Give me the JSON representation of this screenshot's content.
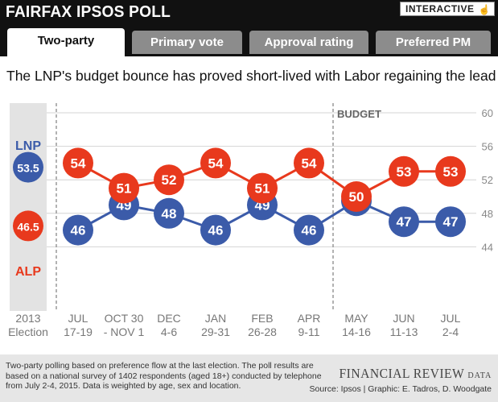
{
  "header": {
    "brand": "FAIRFAX IPSOS POLL",
    "interactive_label": "INTERACTIVE",
    "tabs": [
      {
        "label": "Two-party",
        "active": true
      },
      {
        "label": "Primary vote",
        "active": false
      },
      {
        "label": "Approval rating",
        "active": false
      },
      {
        "label": "Preferred PM",
        "active": false
      }
    ]
  },
  "subtitle": "The LNP's budget bounce has proved short-lived with Labor regaining the lead",
  "chart_data": {
    "type": "line",
    "categories": [
      [
        "2013",
        "Election"
      ],
      [
        "JUL",
        "17-19"
      ],
      [
        "OCT 30",
        "- NOV 1"
      ],
      [
        "DEC",
        "4-6"
      ],
      [
        "JAN",
        "29-31"
      ],
      [
        "FEB",
        "26-28"
      ],
      [
        "APR",
        "9-11"
      ],
      [
        "MAY",
        "14-16"
      ],
      [
        "JUN",
        "11-13"
      ],
      [
        "JUL",
        "2-4"
      ]
    ],
    "series": [
      {
        "name": "LNP",
        "color": "#3b5ba9",
        "values": [
          53.5,
          46,
          49,
          48,
          46,
          49,
          46,
          49.5,
          47,
          47
        ],
        "labels": [
          "53.5",
          "46",
          "49",
          "48",
          "46",
          "49",
          "46",
          "",
          "47",
          "47"
        ]
      },
      {
        "name": "ALP",
        "color": "#e8391d",
        "values": [
          46.5,
          54,
          51,
          52,
          54,
          51,
          54,
          50,
          53,
          53
        ],
        "labels": [
          "46.5",
          "54",
          "51",
          "52",
          "54",
          "51",
          "54",
          "50",
          "53",
          "53"
        ]
      }
    ],
    "yticks": [
      "60",
      "56",
      "52",
      "48",
      "44"
    ],
    "ylim": [
      40,
      60
    ],
    "annotation": "BUDGET",
    "grid": true
  },
  "footer": {
    "note": "Two-party polling based on preference flow at the last election. The poll results are based on a national survey of 1402 respondents (aged 18+) conducted by telephone from July 2-4, 2015.  Data is weighted by age, sex and location.",
    "logo_main": "FINANCIAL REVIEW",
    "logo_suffix": "DATA",
    "source": "Source: Ipsos | Graphic: E. Tadros, D. Woodgate"
  },
  "colors": {
    "lnp": "#3b5ba9",
    "alp": "#e8391d",
    "election_band": "#e3e3e3"
  }
}
